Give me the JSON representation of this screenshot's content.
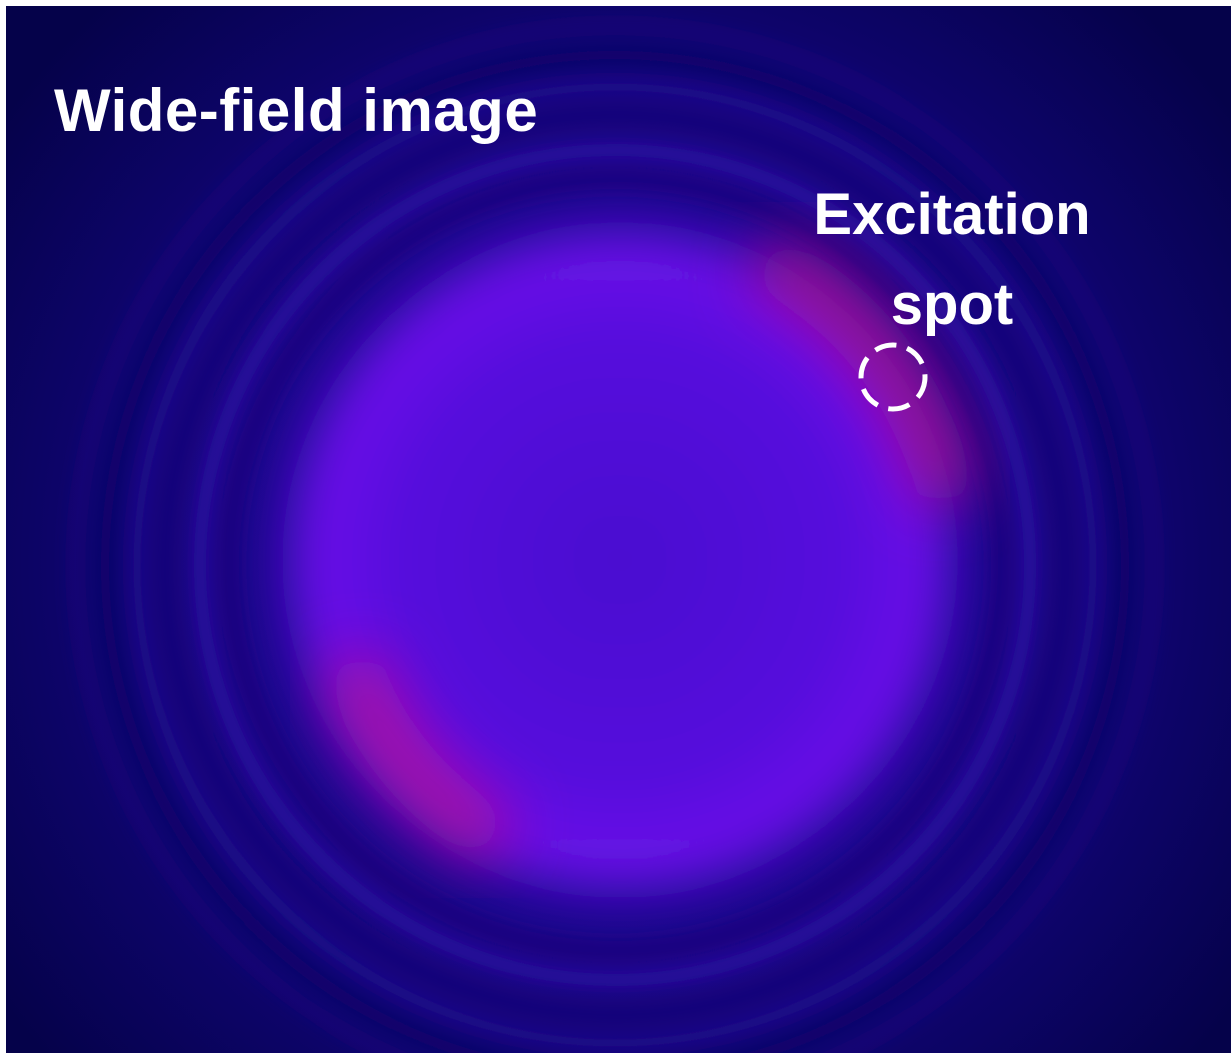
{
  "title": "Wide-field image",
  "annotation": "Excitation spot"
}
